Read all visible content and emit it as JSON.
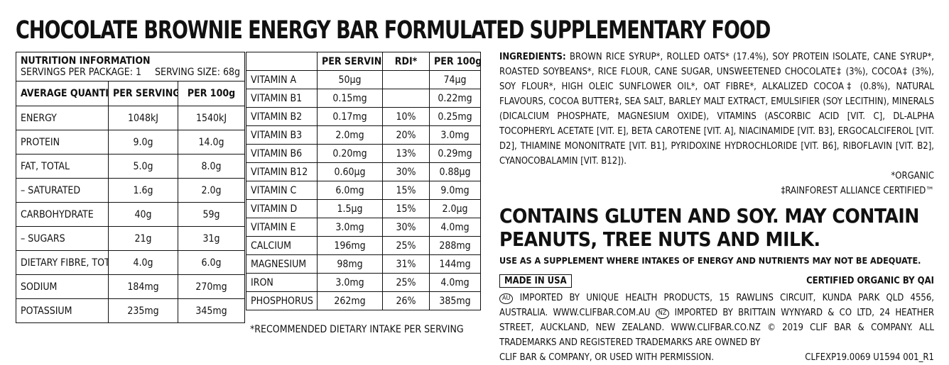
{
  "title": "CHOCOLATE BROWNIE ENERGY BAR FORMULATED SUPPLEMENTARY FOOD",
  "nutrition": {
    "heading": "NUTRITION INFORMATION",
    "servings": "SERVINGS PER PACKAGE: 1",
    "serving_size": "SERVING SIZE: 68g",
    "columns": [
      "AVERAGE QUANTITY",
      "PER SERVING",
      "PER 100g"
    ],
    "rows": [
      [
        "ENERGY",
        "1048kJ",
        "1540kJ"
      ],
      [
        "PROTEIN",
        "9.0g",
        "14.0g"
      ],
      [
        "FAT, TOTAL",
        "5.0g",
        "8.0g"
      ],
      [
        "– SATURATED",
        "1.6g",
        "2.0g"
      ],
      [
        "CARBOHYDRATE",
        "40g",
        "59g"
      ],
      [
        "– SUGARS",
        "21g",
        "31g"
      ],
      [
        "DIETARY FIBRE, TOTAL",
        "4.0g",
        "6.0g"
      ],
      [
        "SODIUM",
        "184mg",
        "270mg"
      ],
      [
        "POTASSIUM",
        "235mg",
        "345mg"
      ]
    ]
  },
  "vitamins": {
    "columns": [
      "",
      "PER SERVING",
      "RDI*",
      "PER 100g"
    ],
    "rows": [
      [
        "VITAMIN A",
        "50μg",
        "",
        "74μg"
      ],
      [
        "VITAMIN B1",
        "0.15mg",
        "",
        "0.22mg"
      ],
      [
        "VITAMIN B2",
        "0.17mg",
        "10%",
        "0.25mg"
      ],
      [
        "VITAMIN B3",
        "2.0mg",
        "20%",
        "3.0mg"
      ],
      [
        "VITAMIN B6",
        "0.20mg",
        "13%",
        "0.29mg"
      ],
      [
        "VITAMIN B12",
        "0.60μg",
        "30%",
        "0.88μg"
      ],
      [
        "VITAMIN C",
        "6.0mg",
        "15%",
        "9.0mg"
      ],
      [
        "VITAMIN D",
        "1.5μg",
        "15%",
        "2.0μg"
      ],
      [
        "VITAMIN E",
        "3.0mg",
        "30%",
        "4.0mg"
      ],
      [
        "CALCIUM",
        "196mg",
        "25%",
        "288mg"
      ],
      [
        "MAGNESIUM",
        "98mg",
        "31%",
        "144mg"
      ],
      [
        "IRON",
        "3.0mg",
        "25%",
        "4.0mg"
      ],
      [
        "PHOSPHORUS",
        "262mg",
        "26%",
        "385mg"
      ]
    ],
    "footnote": "*RECOMMENDED DIETARY INTAKE PER SERVING"
  },
  "ingredients": {
    "label": "INGREDIENTS:",
    "text": "BROWN RICE SYRUP*, ROLLED OATS* (17.4%), SOY PROTEIN ISOLATE, CANE SYRUP*, ROASTED SOYBEANS*, RICE FLOUR, CANE SUGAR, UNSWEETENED CHOCOLATE‡ (3%), COCOA‡ (3%), SOY FLOUR*, HIGH OLEIC SUNFLOWER OIL*, OAT FIBRE*, ALKALIZED COCOA‡ (0.8%), NATURAL FLAVOURS, COCOA BUTTER‡, SEA SALT, BARLEY MALT EXTRACT, EMULSIFIER (SOY LECITHIN), MINERALS (DICALCIUM PHOSPHATE, MAGNESIUM OXIDE), VITAMINS (ASCORBIC ACID [VIT. C], DL-ALPHA TOCOPHERYL ACETATE [VIT. E], BETA CAROTENE [VIT. A], NIACINAMIDE [VIT. B3], ERGOCALCIFEROL [VIT. D2], THIAMINE MONONITRATE [VIT. B1], PYRIDOXINE HYDROCHLORIDE [VIT. B6], RIBOFLAVIN [VIT. B2], CYANOCOBALAMIN [VIT. B12]).",
    "organic_note": "*ORGANIC",
    "rainforest_note": "‡RAINFOREST ALLIANCE CERTIFIED™"
  },
  "allergen": "CONTAINS GLUTEN AND SOY. MAY CONTAIN PEANUTS, TREE NUTS AND MILK.",
  "supplement_note": "USE AS A SUPPLEMENT WHERE INTAKES OF ENERGY AND NUTRIENTS MAY NOT BE ADEQUATE.",
  "made_in": "MADE IN USA",
  "certified": "CERTIFIED ORGANIC BY QAI",
  "importers": {
    "au_badge": "AU",
    "au_text": "IMPORTED BY UNIQUE HEALTH PRODUCTS, 15 RAWLINS CIRCUIT, KUNDA PARK QLD 4556, AUSTRALIA.",
    "au_url": "WWW.CLIFBAR.COM.AU",
    "nz_badge": "NZ",
    "nz_text": "IMPORTED BY BRITTAIN WYNYARD & CO LTD, 24 HEATHER STREET, AUCKLAND, NEW ZEALAND.",
    "nz_url": "WWW.CLIFBAR.CO.NZ",
    "copyright": "© 2019 CLIF BAR & COMPANY. ALL TRADEMARKS AND REGISTERED TRADEMARKS ARE OWNED BY",
    "copyright2": "CLIF BAR & COMPANY, OR USED WITH PERMISSION.",
    "code": "CLFEXP19.0069  U1594 001_R1"
  }
}
